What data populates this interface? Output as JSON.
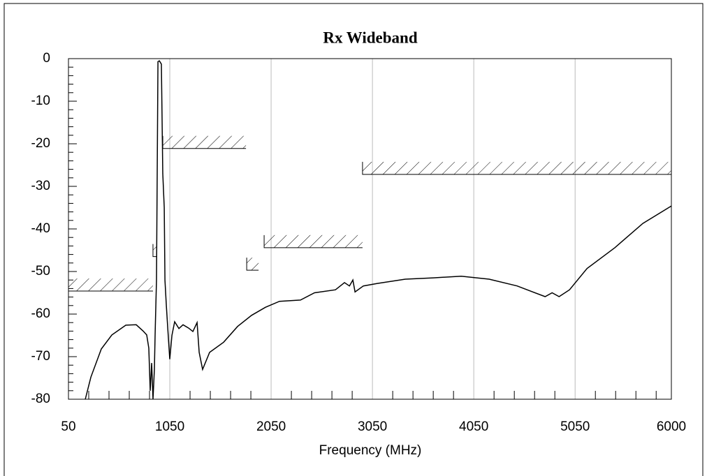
{
  "chart_data": {
    "type": "line",
    "title": "Rx Wideband",
    "x_label": "Frequency (MHz)",
    "xlim": [
      50,
      6000
    ],
    "xticks": [
      50,
      1050,
      2050,
      3050,
      4050,
      5050,
      6000
    ],
    "ylim": [
      -80,
      0
    ],
    "yticks": [
      0,
      -10,
      -20,
      -30,
      -40,
      -50,
      -60,
      -70,
      -80
    ],
    "grid": true,
    "color": "#000000",
    "x": [
      216,
      271,
      374,
      478,
      616,
      719,
      788,
      822,
      843,
      857,
      871,
      884,
      898,
      905,
      919,
      933,
      947,
      967,
      981,
      995,
      1002,
      1016,
      1029,
      1050,
      1071,
      1098,
      1140,
      1181,
      1236,
      1278,
      1319,
      1340,
      1374,
      1443,
      1581,
      1719,
      1857,
      1995,
      2133,
      2340,
      2478,
      2685,
      2774,
      2823,
      2857,
      2878,
      2960,
      3098,
      3374,
      3650,
      3926,
      4202,
      4478,
      4754,
      4823,
      4892,
      4995,
      5168,
      5443,
      5719,
      6000
    ],
    "values": [
      -80,
      -74.8,
      -68.2,
      -64.9,
      -62.6,
      -62.5,
      -64,
      -64.9,
      -68,
      -78,
      -71.5,
      -80,
      -73,
      -65,
      -52,
      -0.7,
      -0.5,
      -1.3,
      -27,
      -35,
      -52,
      -58,
      -63,
      -70.6,
      -65,
      -61.8,
      -63.4,
      -62.5,
      -63.3,
      -64.1,
      -62,
      -69,
      -73,
      -69,
      -66.6,
      -62.9,
      -60.3,
      -58.4,
      -57,
      -56.7,
      -55,
      -54.3,
      -52.6,
      -53.4,
      -52,
      -54.8,
      -53.4,
      -52.8,
      -51.8,
      -51.5,
      -51.1,
      -51.8,
      -53.4,
      -55.9,
      -55,
      -55.9,
      -54.3,
      -49.3,
      -44.4,
      -38.7,
      -34.6
    ],
    "masks": [
      {
        "x": [
          50,
          884
        ],
        "level": -54.6
      },
      {
        "x": [
          884,
          919
        ],
        "level": -46.5
      },
      {
        "x": [
          981,
          1802
        ],
        "level": -21.1
      },
      {
        "x": [
          1809,
          1926
        ],
        "level": -49.7
      },
      {
        "x": [
          1981,
          2952
        ],
        "level": -44.4
      },
      {
        "x": [
          2952,
          6000
        ],
        "level": -27.2
      }
    ]
  }
}
